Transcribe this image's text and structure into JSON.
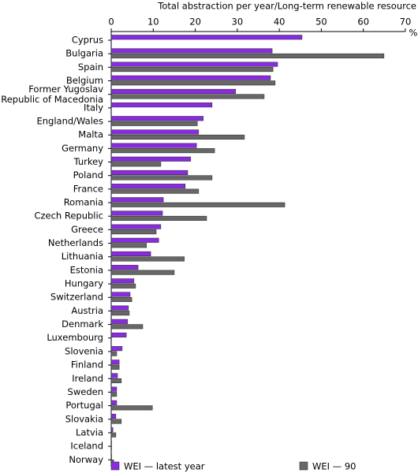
{
  "chart_data": {
    "type": "bar",
    "orientation": "horizontal",
    "title": "Total abstraction per year/Long-term renewable resource",
    "x_unit": "%",
    "categories": [
      "Cyprus",
      "Bulgaria",
      "Spain",
      "Belgium",
      "Former Yugoslav\nRepublic of Macedonia",
      "Italy",
      "England/Wales",
      "Malta",
      "Germany",
      "Turkey",
      "Poland",
      "France",
      "Romania",
      "Czech Republic",
      "Greece",
      "Netherlands",
      "Lithuania",
      "Estonia",
      "Hungary",
      "Switzerland",
      "Austria",
      "Denmark",
      "Luxembourg",
      "Slovenia",
      "Finland",
      "Ireland",
      "Sweden",
      "Portugal",
      "Slovakia",
      "Latvia",
      "Iceland",
      "Norway"
    ],
    "series": [
      {
        "name": "WEI — latest year",
        "color": "#8a2be2",
        "values": [
          45.4,
          38.3,
          39.6,
          37.9,
          29.6,
          24.0,
          21.9,
          20.8,
          20.3,
          18.9,
          18.2,
          17.6,
          12.4,
          12.2,
          11.8,
          11.3,
          9.4,
          6.4,
          5.4,
          4.5,
          4.1,
          3.9,
          3.6,
          2.6,
          1.9,
          1.5,
          1.3,
          1.3,
          1.1,
          0.4,
          0.1,
          0.1
        ]
      },
      {
        "name": "WEI — 90",
        "color": "#676767",
        "values": [
          null,
          64.9,
          38.5,
          39.0,
          36.4,
          null,
          20.5,
          31.7,
          24.6,
          11.8,
          24.0,
          20.8,
          41.3,
          22.7,
          10.7,
          8.4,
          17.4,
          15.0,
          5.8,
          4.9,
          4.3,
          7.5,
          null,
          1.3,
          1.9,
          2.4,
          1.3,
          9.8,
          2.4,
          1.1,
          0.1,
          0.6
        ]
      }
    ],
    "xlim": [
      0,
      70
    ],
    "xticks": [
      0,
      10,
      20,
      30,
      40,
      50,
      60,
      70
    ]
  }
}
